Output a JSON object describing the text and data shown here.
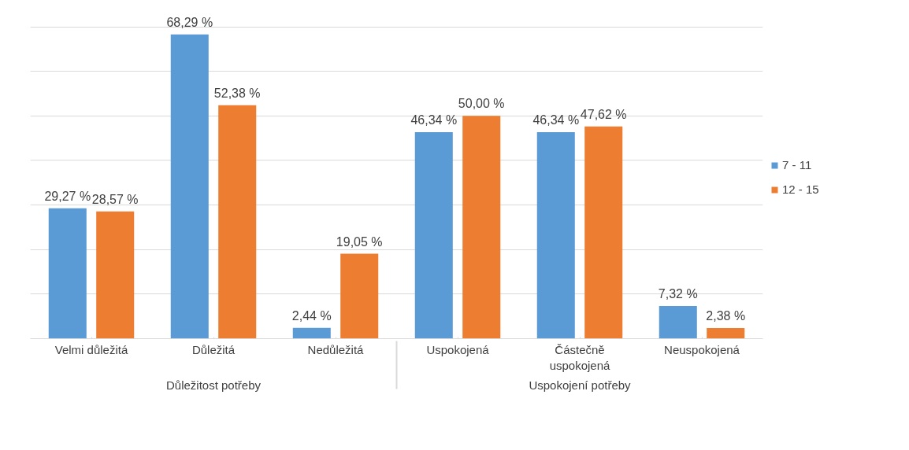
{
  "chart_data": {
    "type": "bar",
    "categories": [
      "Velmi důležitá",
      "Důležitá",
      "Nedůležitá",
      "Uspokojená",
      "Částečně uspokojená",
      "Neuspokojená"
    ],
    "annotations": [
      "Důležitost potřeby",
      "Uspokojení potřeby"
    ],
    "series": [
      {
        "name": "7 - 11",
        "color": "#5b9bd5",
        "values": [
          29.27,
          68.29,
          2.44,
          46.34,
          46.34,
          7.32
        ],
        "value_labels": [
          "29,27 %",
          "68,29 %",
          "2,44 %",
          "46,34 %",
          "46,34 %",
          "7,32 %"
        ]
      },
      {
        "name": "12 - 15",
        "color": "#ed7d31",
        "values": [
          28.57,
          52.38,
          19.05,
          50.0,
          47.62,
          2.38
        ],
        "value_labels": [
          "28,57 %",
          "52,38 %",
          "19,05 %",
          "50,00 %",
          "47,62 %",
          "2,38 %"
        ]
      }
    ],
    "grid": "y",
    "legend": "right",
    "tick_labels": "x"
  }
}
